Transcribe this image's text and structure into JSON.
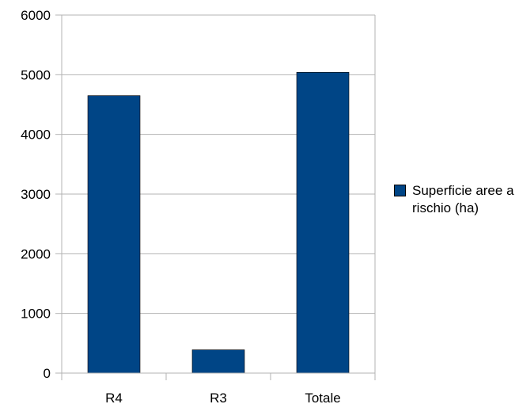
{
  "chart_data": {
    "type": "bar",
    "categories": [
      "R4",
      "R3",
      "Totale"
    ],
    "series": [
      {
        "name": "Superficie aree a rischio (ha)",
        "values": [
          4650,
          390,
          5040
        ]
      }
    ],
    "ylim": [
      0,
      6000
    ],
    "yticks": [
      "0",
      "1000",
      "2000",
      "3000",
      "4000",
      "5000",
      "6000"
    ],
    "grid": true,
    "legend_position": "right",
    "colors": {
      "bar": "#004586",
      "grid": "#b3b3b3",
      "axis": "#b3b3b3"
    }
  }
}
